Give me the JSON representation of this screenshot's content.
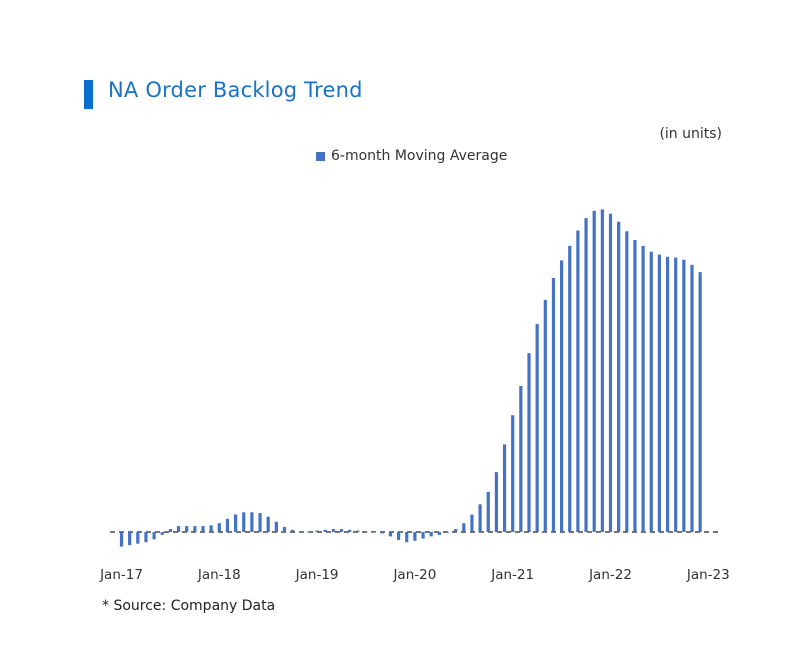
{
  "header": {
    "title": "NA Order Backlog Trend",
    "units_note": "(in units)"
  },
  "footer": {
    "source": "* Source: Company Data"
  },
  "chart_data": {
    "type": "bar",
    "title": "NA Order Backlog Trend",
    "unit_note": "(in units)",
    "legend_position": "top-center",
    "grid": false,
    "baseline": "dashed reference line at 0",
    "colors": {
      "bar": "#4472c4",
      "baseline": "#222222"
    },
    "series": [
      {
        "name": "6-month Moving Average",
        "values": [
          -20,
          -18,
          -16,
          -14,
          -10,
          -4,
          4,
          8,
          8,
          8,
          8,
          9,
          12,
          18,
          24,
          27,
          27,
          26,
          21,
          14,
          7,
          3,
          1,
          0,
          2,
          3,
          4,
          4,
          3,
          2,
          1,
          0,
          -2,
          -6,
          -11,
          -14,
          -12,
          -9,
          -6,
          -4,
          -1,
          4,
          12,
          24,
          38,
          55,
          82,
          120,
          160,
          200,
          245,
          285,
          318,
          348,
          372,
          392,
          413,
          430,
          440,
          442,
          436,
          425,
          412,
          400,
          392,
          384,
          380,
          377,
          376,
          373,
          366,
          356
        ]
      }
    ],
    "x_tick_labels": [
      "Jan-17",
      "Jan-18",
      "Jan-19",
      "Jan-20",
      "Jan-21",
      "Jan-22",
      "Jan-23"
    ],
    "x_tick_index": [
      0,
      12,
      24,
      36,
      48,
      60,
      72
    ],
    "ylim": [
      -30,
      460
    ]
  }
}
